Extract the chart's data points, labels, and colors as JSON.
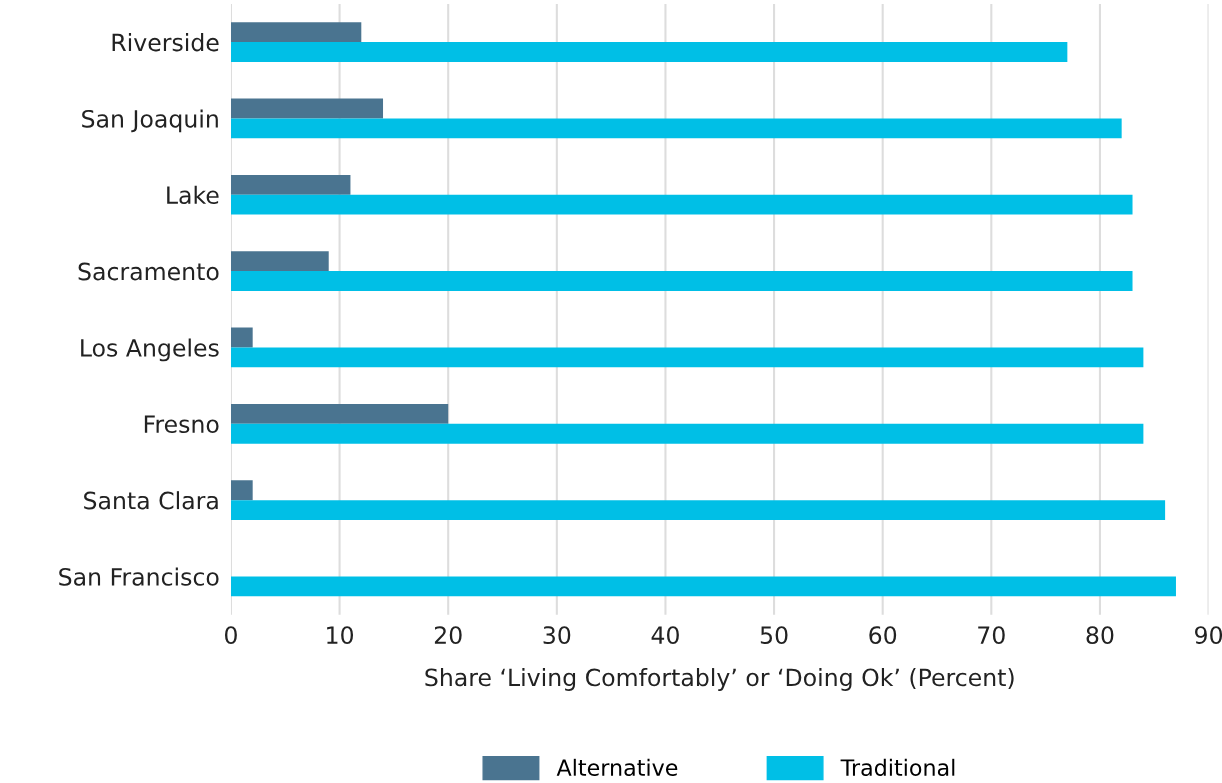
{
  "chart_data": {
    "type": "bar",
    "orientation": "horizontal",
    "xlabel": "Share ‘Living Comfortably’ or ‘Doing Ok’ (Percent)",
    "categories": [
      "Riverside",
      "San Joaquin",
      "Lake",
      "Sacramento",
      "Los Angeles",
      "Fresno",
      "Santa Clara",
      "San Francisco"
    ],
    "series": [
      {
        "name": "Alternative",
        "color": "#4a7490",
        "values": [
          12,
          14,
          11,
          9,
          2,
          20,
          2,
          0
        ]
      },
      {
        "name": "Traditional",
        "color": "#00bfe6",
        "values": [
          77,
          82,
          83,
          83,
          84,
          84,
          86,
          87
        ]
      }
    ],
    "xlim": [
      0,
      90
    ],
    "xticks": [
      0,
      10,
      20,
      30,
      40,
      50,
      60,
      70,
      80,
      90
    ],
    "grid": "x",
    "legend": "bottom"
  }
}
